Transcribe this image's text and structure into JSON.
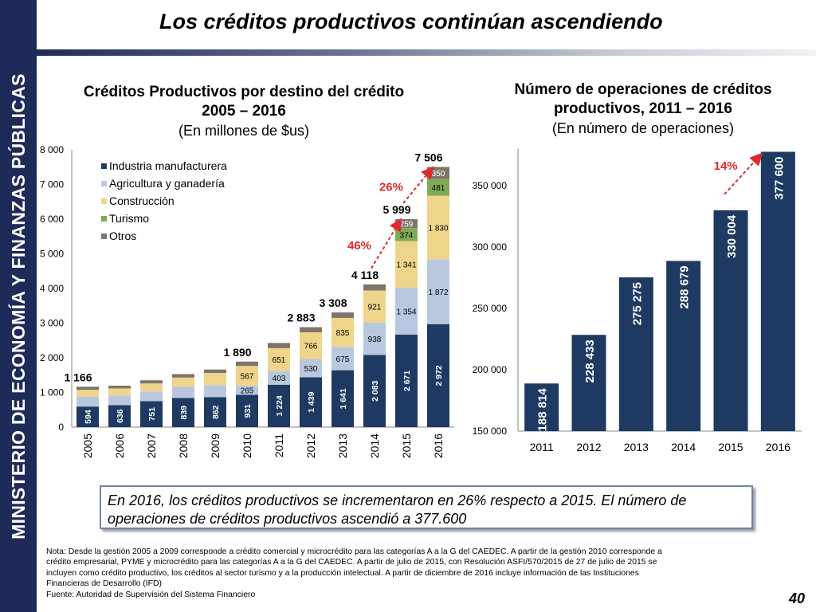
{
  "sidebar": {
    "text": "MINISTERIO DE ECONOMÍA Y FINANZAS PÚBLICAS"
  },
  "header": {
    "title": "Los créditos productivos continúan ascendiendo"
  },
  "left_chart": {
    "title_line1": "Créditos Productivos por destino del crédito",
    "title_line2": "2005 – 2016",
    "subtitle": "(En millones de $us)"
  },
  "right_chart": {
    "title_line1": "Número de operaciones de créditos",
    "title_line2": "productivos, 2011 – 2016",
    "subtitle": "(En número de operaciones)"
  },
  "chart_data": [
    {
      "type": "bar",
      "stacked": true,
      "title": "Créditos Productivos por destino del crédito 2005 – 2016",
      "subtitle": "(En millones de $us)",
      "categories": [
        "2005",
        "2006",
        "2007",
        "2008",
        "2009",
        "2010",
        "2011",
        "2012",
        "2013",
        "2014",
        "2015",
        "2016"
      ],
      "ylim": [
        0,
        8000
      ],
      "yticks": [
        "0",
        "1 000",
        "2 000",
        "3 000",
        "4 000",
        "5 000",
        "6 000",
        "7 000",
        "8 000"
      ],
      "legend_position": "top-left",
      "series": [
        {
          "name": "Industria manufacturera",
          "color": "#1e3a62",
          "values": [
            594,
            636,
            751,
            839,
            862,
            931,
            1224,
            1439,
            1641,
            2083,
            2671,
            2972
          ]
        },
        {
          "name": "Agricultura y ganadería",
          "color": "#b9c8df",
          "values": [
            280,
            280,
            280,
            330,
            350,
            265,
            403,
            530,
            675,
            938,
            1354,
            1872
          ]
        },
        {
          "name": "Construcción",
          "color": "#efd58a",
          "values": [
            200,
            200,
            230,
            260,
            350,
            567,
            651,
            766,
            835,
            921,
            1341,
            1830
          ]
        },
        {
          "name": "Turismo",
          "color": "#7fab56",
          "values": [
            0,
            0,
            0,
            0,
            0,
            0,
            0,
            0,
            0,
            0,
            374,
            481
          ]
        },
        {
          "name": "Otros",
          "color": "#7d766b",
          "values": [
            92,
            80,
            90,
            101,
            100,
            127,
            150,
            148,
            157,
            176,
            259,
            350
          ]
        }
      ],
      "labels": {
        "Industria manufacturera": [
          "594",
          "636",
          "751",
          "839",
          "862",
          "931",
          "1 224",
          "1 439",
          "1 641",
          "2 083",
          "2 671",
          "2 972"
        ],
        "Agricultura y ganadería": [
          "",
          "",
          "",
          "",
          "",
          "265",
          "403",
          "530",
          "675",
          "938",
          "1 354",
          "1 872"
        ],
        "Construcción": [
          "",
          "",
          "",
          "",
          "",
          "567",
          "651",
          "766",
          "835",
          "921",
          "1 341",
          "1 830"
        ],
        "Turismo": [
          "",
          "",
          "",
          "",
          "",
          "",
          "",
          "",
          "",
          "",
          "374",
          "481"
        ],
        "Otros": [
          "",
          "",
          "",
          "",
          "",
          "",
          "",
          "",
          "",
          "",
          "259",
          "350"
        ]
      },
      "totals": [
        "1 166",
        "",
        "",
        "",
        "",
        "1 890",
        "",
        "2 883",
        "3 308",
        "4 118",
        "5 999",
        "7 506"
      ],
      "annotations": [
        {
          "text": "46%",
          "from": "2014",
          "to": "2015",
          "color": "#e1292c"
        },
        {
          "text": "26%",
          "from": "2015",
          "to": "2016",
          "color": "#e1292c"
        }
      ]
    },
    {
      "type": "bar",
      "title": "Número de operaciones de créditos productivos, 2011 – 2016",
      "subtitle": "(En número de operaciones)",
      "categories": [
        "2011",
        "2012",
        "2013",
        "2014",
        "2015",
        "2016"
      ],
      "values": [
        188814,
        228433,
        275275,
        288679,
        330004,
        377600
      ],
      "value_labels": [
        "188 814",
        "228 433",
        "275 275",
        "288 679",
        "330 004",
        "377 600"
      ],
      "ylim": [
        150000,
        380000
      ],
      "yticks": [
        "150 000",
        "200 000",
        "250 000",
        "300 000",
        "350 000"
      ],
      "ytick_values": [
        150000,
        200000,
        250000,
        300000,
        350000
      ],
      "color": "#1e3a62",
      "annotations": [
        {
          "text": "14%",
          "from": "2015",
          "to": "2016",
          "color": "#e1292c"
        }
      ]
    }
  ],
  "summary": {
    "line1": "En 2016, los créditos productivos se incrementaron en 26% respecto a 2015. El número de",
    "line2": "operaciones de créditos productivos ascendió a 377.600"
  },
  "note": {
    "line1": "Nota: Desde la gestión 2005 a 2009 corresponde a crédito comercial y microcrédito para las categorías A a la G del CAEDEC. A partir de la gestión 2010 corresponde a",
    "line2": "crédito empresarial, PYME y microcrédito para las categorías A a la G del CAEDEC. A partir de julio de 2015, con Resolución ASFI/570/2015 de 27 de julio de 2015 se",
    "line3": "incluyen como crédito productivo, los créditos al sector turismo y a la producción intelectual. A partir de diciembre de 2016 incluye información de las Instituciones",
    "line4": "Financieras de Desarrollo (IFD)",
    "line5": "Fuente: Autoridad de Supervisión del Sistema Financiero"
  },
  "page": {
    "number": "40"
  }
}
